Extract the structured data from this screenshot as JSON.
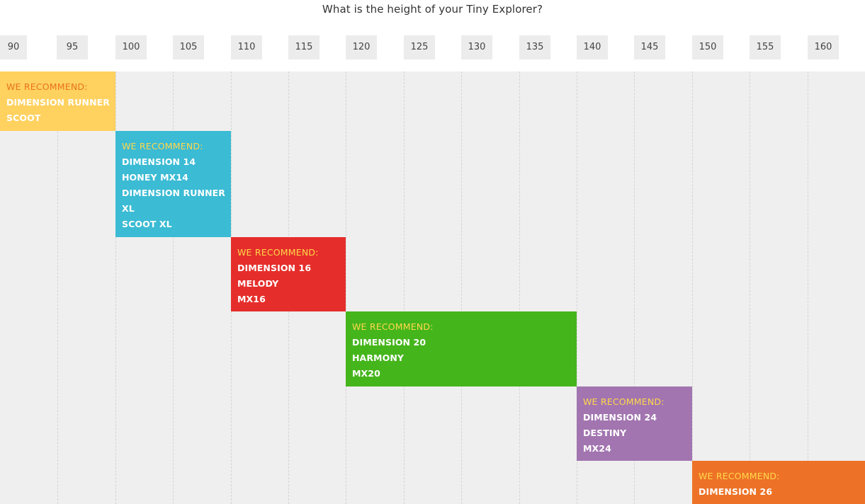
{
  "title": "What is the height of your Tiny Explorer?",
  "heights": [
    "90",
    "95",
    "100",
    "105",
    "110",
    "115",
    "120",
    "125",
    "130",
    "135",
    "140",
    "145",
    "150",
    "155",
    "160"
  ],
  "recommendations": [
    {
      "heading": "WE RECOMMEND:",
      "color": "#ffd15f",
      "heading_color": "#e8731c",
      "models": [
        "DIMENSION RUNNER",
        "SCOOT"
      ]
    },
    {
      "heading": "WE RECOMMEND:",
      "color": "#3bbbd4",
      "heading_color": "#ffd84a",
      "models": [
        "DIMENSION 14",
        "HONEY MX14",
        "DIMENSION RUNNER",
        "XL",
        "SCOOT XL"
      ]
    },
    {
      "heading": "WE RECOMMEND:",
      "color": "#e52e2b",
      "heading_color": "#ffd84a",
      "models": [
        "DIMENSION 16",
        "MELODY",
        "MX16"
      ]
    },
    {
      "heading": "WE RECOMMEND:",
      "color": "#45b51c",
      "heading_color": "#ffd84a",
      "models": [
        "DIMENSION 20",
        "HARMONY",
        "MX20"
      ]
    },
    {
      "heading": "WE RECOMMEND:",
      "color": "#a275b0",
      "heading_color": "#ffd84a",
      "models": [
        "DIMENSION 24",
        "DESTINY",
        "MX24"
      ]
    },
    {
      "heading": "WE RECOMMEND:",
      "color": "#ed7227",
      "heading_color": "#ffd84a",
      "models": [
        "DIMENSION 26"
      ]
    }
  ]
}
